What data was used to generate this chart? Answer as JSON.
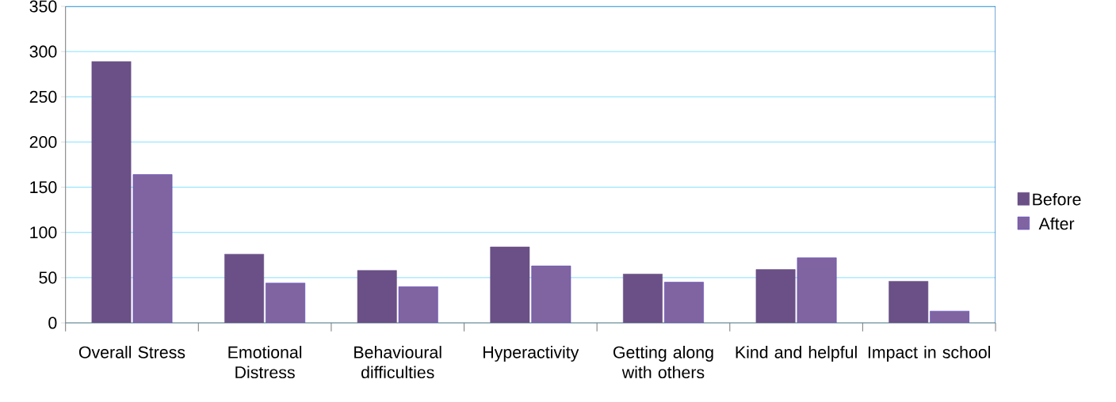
{
  "chart_data": {
    "type": "bar",
    "categories": [
      "Overall Stress",
      "Emotional Distress",
      "Behavioural difficulties",
      "Hyperactivity",
      "Getting along with others",
      "Kind and helpful",
      "Impact in school"
    ],
    "series": [
      {
        "name": "Before",
        "color": "#6a5086",
        "values": [
          289,
          76,
          58,
          84,
          54,
          59,
          46
        ]
      },
      {
        "name": "After",
        "color": "#8064a2",
        "values": [
          164,
          44,
          40,
          63,
          45,
          72,
          13
        ]
      }
    ],
    "ylim": [
      0,
      350
    ],
    "yticks": [
      0,
      50,
      100,
      150,
      200,
      250,
      300,
      350
    ],
    "grid": "y",
    "legend": "right"
  }
}
